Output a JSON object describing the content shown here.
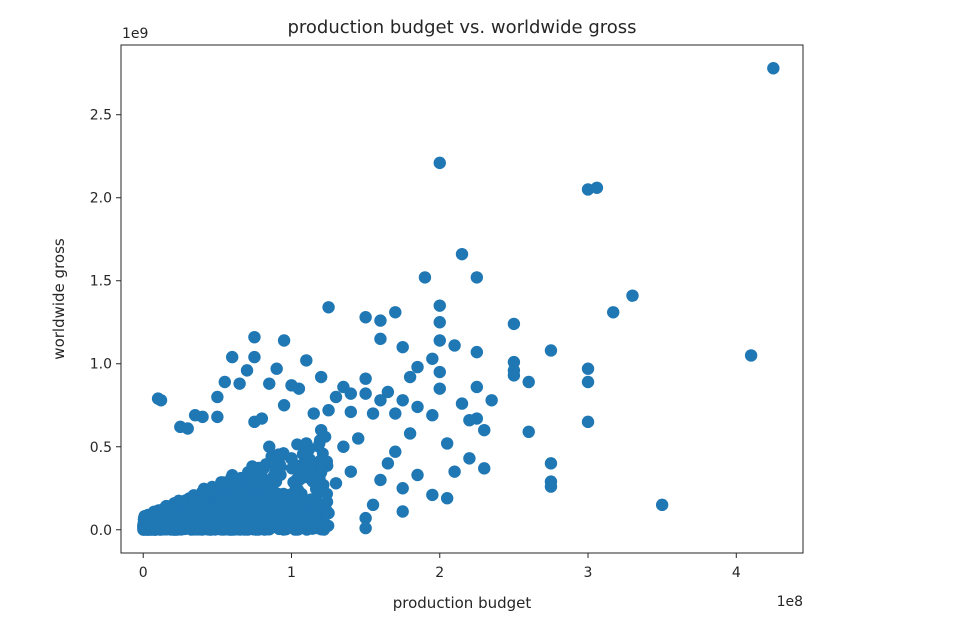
{
  "chart_data": {
    "type": "scatter",
    "title": "production budget vs. worldwide gross",
    "xlabel": "production budget",
    "ylabel": "worldwide gross",
    "x_offset_label": "1e8",
    "y_offset_label": "1e9",
    "xlim": [
      -0.15,
      4.45
    ],
    "ylim": [
      -0.14,
      2.92
    ],
    "x_ticks": [
      0,
      1,
      2,
      3,
      4
    ],
    "x_tick_labels": [
      "0",
      "1",
      "2",
      "3",
      "4"
    ],
    "y_ticks": [
      0.0,
      0.5,
      1.0,
      1.5,
      2.0,
      2.5
    ],
    "y_tick_labels": [
      "0.0",
      "0.5",
      "1.0",
      "1.5",
      "2.0",
      "2.5"
    ],
    "grid": false,
    "marker_color": "#1f77b4",
    "points": [
      [
        4.25,
        2.78
      ],
      [
        2.0,
        2.21
      ],
      [
        3.0,
        2.05
      ],
      [
        3.06,
        2.06
      ],
      [
        2.15,
        1.66
      ],
      [
        2.25,
        1.52
      ],
      [
        1.9,
        1.52
      ],
      [
        3.3,
        1.41
      ],
      [
        3.17,
        1.31
      ],
      [
        2.0,
        1.35
      ],
      [
        1.25,
        1.34
      ],
      [
        1.5,
        1.28
      ],
      [
        1.6,
        1.26
      ],
      [
        1.7,
        1.31
      ],
      [
        2.5,
        1.24
      ],
      [
        4.1,
        1.05
      ],
      [
        0.75,
        1.16
      ],
      [
        0.95,
        1.14
      ],
      [
        2.75,
        1.08
      ],
      [
        2.25,
        1.07
      ],
      [
        2.1,
        1.11
      ],
      [
        2.0,
        1.25
      ],
      [
        2.0,
        1.14
      ],
      [
        1.6,
        1.15
      ],
      [
        1.75,
        1.1
      ],
      [
        2.5,
        1.01
      ],
      [
        2.5,
        0.96
      ],
      [
        2.5,
        0.93
      ],
      [
        2.6,
        0.89
      ],
      [
        3.0,
        0.97
      ],
      [
        3.0,
        0.89
      ],
      [
        3.0,
        0.65
      ],
      [
        2.35,
        0.78
      ],
      [
        2.25,
        0.86
      ],
      [
        2.25,
        0.67
      ],
      [
        2.3,
        0.6
      ],
      [
        2.2,
        0.66
      ],
      [
        2.15,
        0.76
      ],
      [
        2.0,
        0.95
      ],
      [
        2.0,
        0.85
      ],
      [
        1.95,
        1.03
      ],
      [
        1.85,
        0.98
      ],
      [
        1.8,
        0.92
      ],
      [
        1.75,
        0.78
      ],
      [
        1.65,
        0.83
      ],
      [
        1.6,
        0.78
      ],
      [
        1.5,
        0.91
      ],
      [
        1.5,
        0.82
      ],
      [
        1.4,
        0.82
      ],
      [
        1.35,
        0.86
      ],
      [
        1.3,
        0.8
      ],
      [
        1.2,
        0.92
      ],
      [
        1.1,
        1.02
      ],
      [
        1.05,
        0.85
      ],
      [
        1.0,
        0.87
      ],
      [
        0.9,
        0.97
      ],
      [
        0.85,
        0.88
      ],
      [
        0.75,
        1.04
      ],
      [
        0.7,
        0.96
      ],
      [
        0.65,
        0.88
      ],
      [
        0.6,
        1.04
      ],
      [
        0.55,
        0.89
      ],
      [
        0.5,
        0.8
      ],
      [
        0.5,
        0.68
      ],
      [
        0.4,
        0.68
      ],
      [
        0.35,
        0.69
      ],
      [
        0.3,
        0.61
      ],
      [
        0.25,
        0.62
      ],
      [
        0.1,
        0.79
      ],
      [
        0.12,
        0.78
      ],
      [
        0.8,
        0.67
      ],
      [
        0.75,
        0.65
      ],
      [
        0.95,
        0.75
      ],
      [
        1.15,
        0.7
      ],
      [
        1.25,
        0.72
      ],
      [
        1.4,
        0.71
      ],
      [
        1.55,
        0.7
      ],
      [
        1.7,
        0.7
      ],
      [
        1.85,
        0.74
      ],
      [
        1.95,
        0.69
      ],
      [
        2.05,
        0.52
      ],
      [
        2.1,
        0.35
      ],
      [
        2.2,
        0.43
      ],
      [
        2.3,
        0.37
      ],
      [
        2.05,
        0.19
      ],
      [
        1.95,
        0.21
      ],
      [
        1.75,
        0.11
      ],
      [
        1.55,
        0.15
      ],
      [
        1.5,
        0.07
      ],
      [
        1.5,
        0.01
      ],
      [
        2.75,
        0.4
      ],
      [
        2.75,
        0.29
      ],
      [
        2.75,
        0.26
      ],
      [
        2.6,
        0.59
      ],
      [
        3.5,
        0.15
      ],
      [
        1.25,
        0.1
      ],
      [
        1.1,
        0.07
      ],
      [
        0.95,
        0.05
      ],
      [
        0.8,
        0.04
      ],
      [
        1.2,
        0.03
      ],
      [
        1.8,
        0.58
      ],
      [
        1.7,
        0.47
      ],
      [
        1.65,
        0.4
      ],
      [
        1.45,
        0.55
      ],
      [
        1.35,
        0.5
      ],
      [
        1.2,
        0.6
      ],
      [
        1.1,
        0.52
      ],
      [
        1.0,
        0.43
      ],
      [
        0.9,
        0.38
      ],
      [
        0.85,
        0.5
      ],
      [
        1.75,
        0.25
      ],
      [
        1.6,
        0.3
      ],
      [
        1.4,
        0.35
      ],
      [
        1.3,
        0.28
      ],
      [
        1.85,
        0.33
      ]
    ]
  }
}
